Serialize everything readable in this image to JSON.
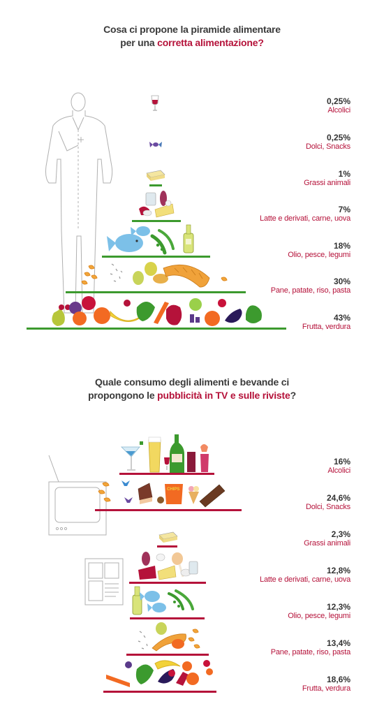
{
  "section1": {
    "title_line1": "Cosa ci propone la piramide alimentare",
    "title_line2_pre": "per una ",
    "title_line2_hl": "corretta alimentazione?",
    "levels": [
      {
        "pct": "0,25%",
        "label": "Alcolici"
      },
      {
        "pct": "0,25%",
        "label": "Dolci, Snacks"
      },
      {
        "pct": "1%",
        "label": "Grassi animali"
      },
      {
        "pct": "7%",
        "label": "Latte e derivati, carne, uova"
      },
      {
        "pct": "18%",
        "label": "Olio, pesce, legumi"
      },
      {
        "pct": "30%",
        "label": "Pane, patate, riso, pasta"
      },
      {
        "pct": "43%",
        "label": "Frutta, verdura"
      }
    ]
  },
  "section2": {
    "title_line1": "Quale consumo degli alimenti e bevande ci",
    "title_line2_pre": "propongono le ",
    "title_line2_hl": "pubblicità in TV e sulle riviste",
    "title_line2_post": "?",
    "levels": [
      {
        "pct": "16%",
        "label": "Alcolici"
      },
      {
        "pct": "24,6%",
        "label": "Dolci, Snacks"
      },
      {
        "pct": "2,3%",
        "label": "Grassi animali"
      },
      {
        "pct": "12,8%",
        "label": "Latte e derivati, carne, uova"
      },
      {
        "pct": "12,3%",
        "label": "Olio, pesce, legumi"
      },
      {
        "pct": "13,4%",
        "label": "Pane, patate, riso, pasta"
      },
      {
        "pct": "18,6%",
        "label": "Frutta, verdura"
      }
    ]
  },
  "colors": {
    "green": "#3c9a2e",
    "red": "#b5123a",
    "text": "#333333"
  }
}
